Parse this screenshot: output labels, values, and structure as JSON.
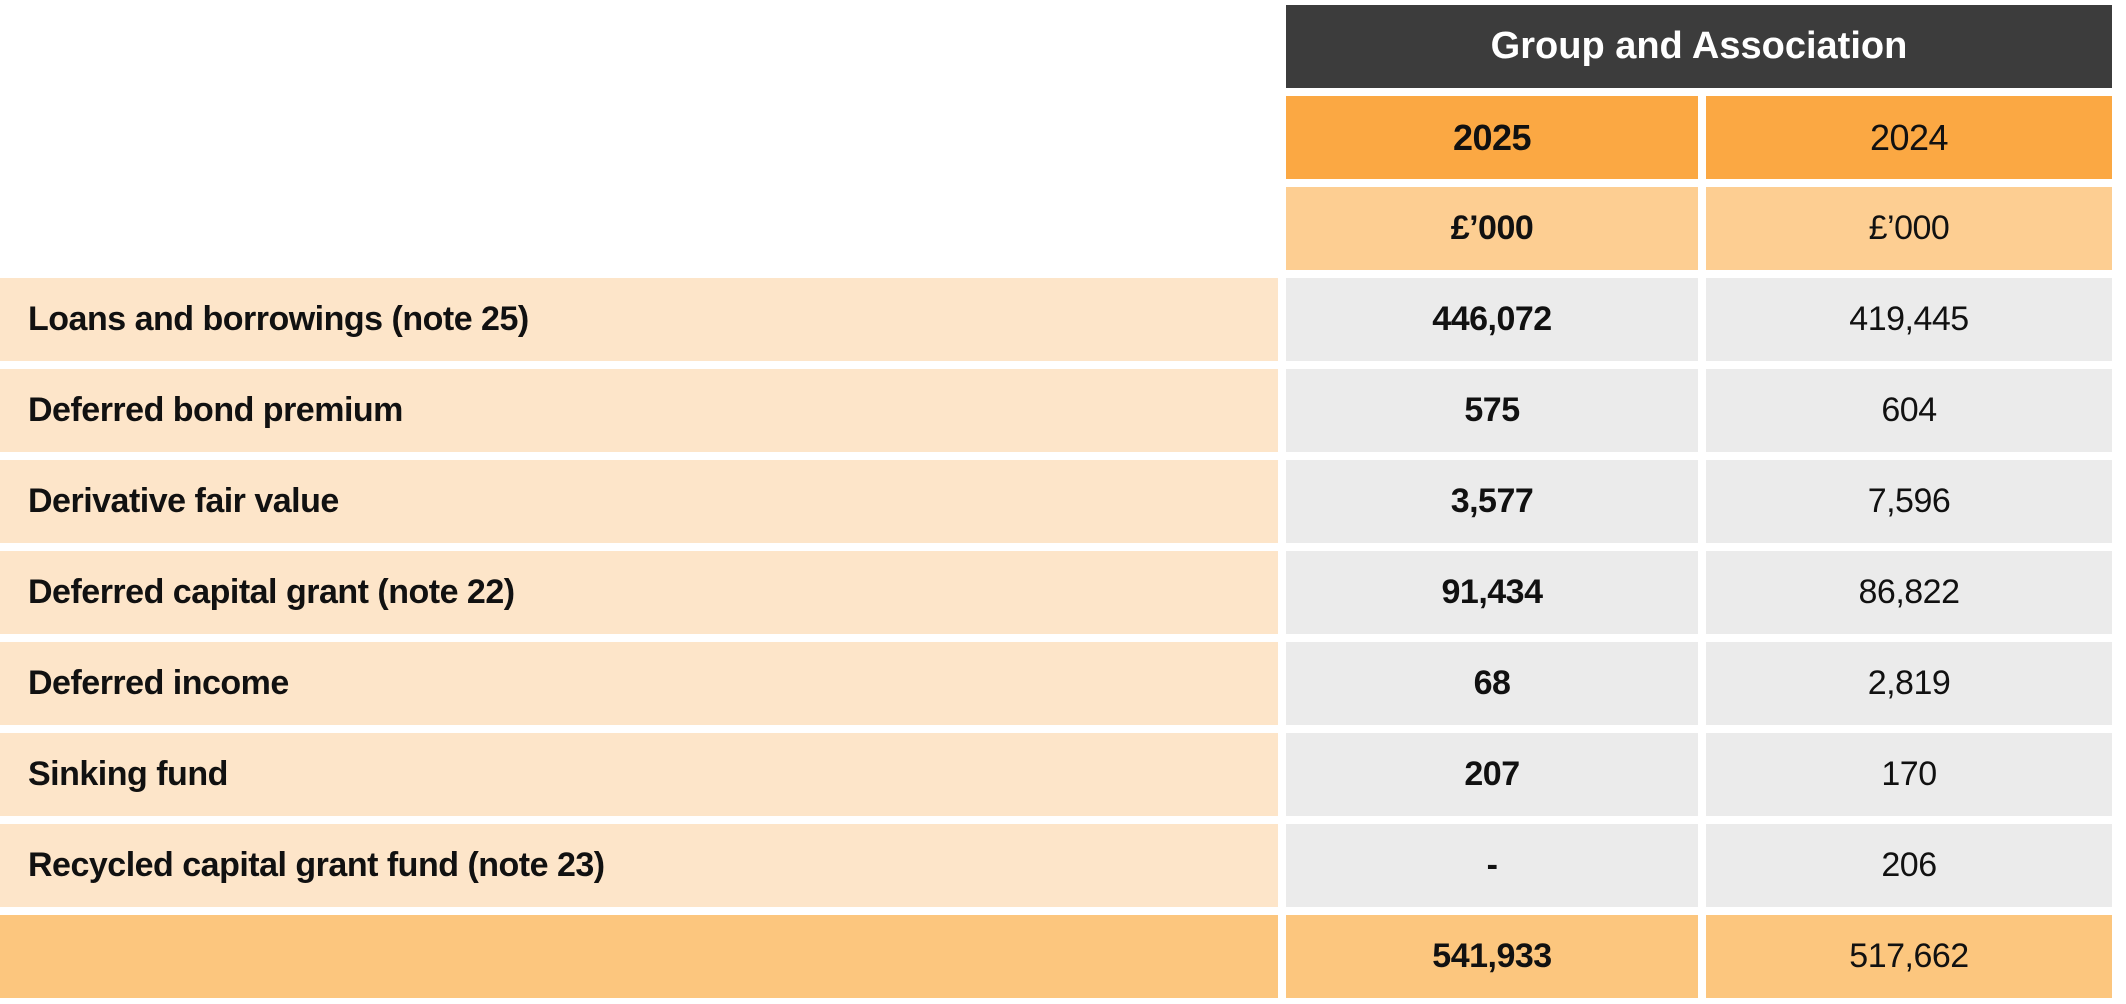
{
  "table": {
    "header": "Group and Association",
    "columns": [
      {
        "year": "2025",
        "unit": "£’000"
      },
      {
        "year": "2024",
        "unit": "£’000"
      }
    ],
    "rows": [
      {
        "label": "Loans and borrowings (note 25)",
        "y2025": "446,072",
        "y2024": "419,445"
      },
      {
        "label": "Deferred bond premium",
        "y2025": "575",
        "y2024": "604"
      },
      {
        "label": "Derivative fair value",
        "y2025": "3,577",
        "y2024": "7,596"
      },
      {
        "label": "Deferred capital grant (note 22)",
        "y2025": "91,434",
        "y2024": "86,822"
      },
      {
        "label": "Deferred income",
        "y2025": "68",
        "y2024": "2,819"
      },
      {
        "label": "Sinking fund",
        "y2025": "207",
        "y2024": "170"
      },
      {
        "label": "Recycled capital grant fund (note 23)",
        "y2025": "-",
        "y2024": "206"
      }
    ],
    "total": {
      "y2025": "541,933",
      "y2024": "517,662"
    },
    "colors": {
      "header_bg": "#3c3c3c",
      "header_text": "#ffffff",
      "year_row_bg": "#fba843",
      "unit_row_bg": "#fdce92",
      "label_bg": "#fde5c9",
      "value_bg": "#ebebeb",
      "total_bg": "#fcc67e",
      "text": "#111111"
    }
  }
}
